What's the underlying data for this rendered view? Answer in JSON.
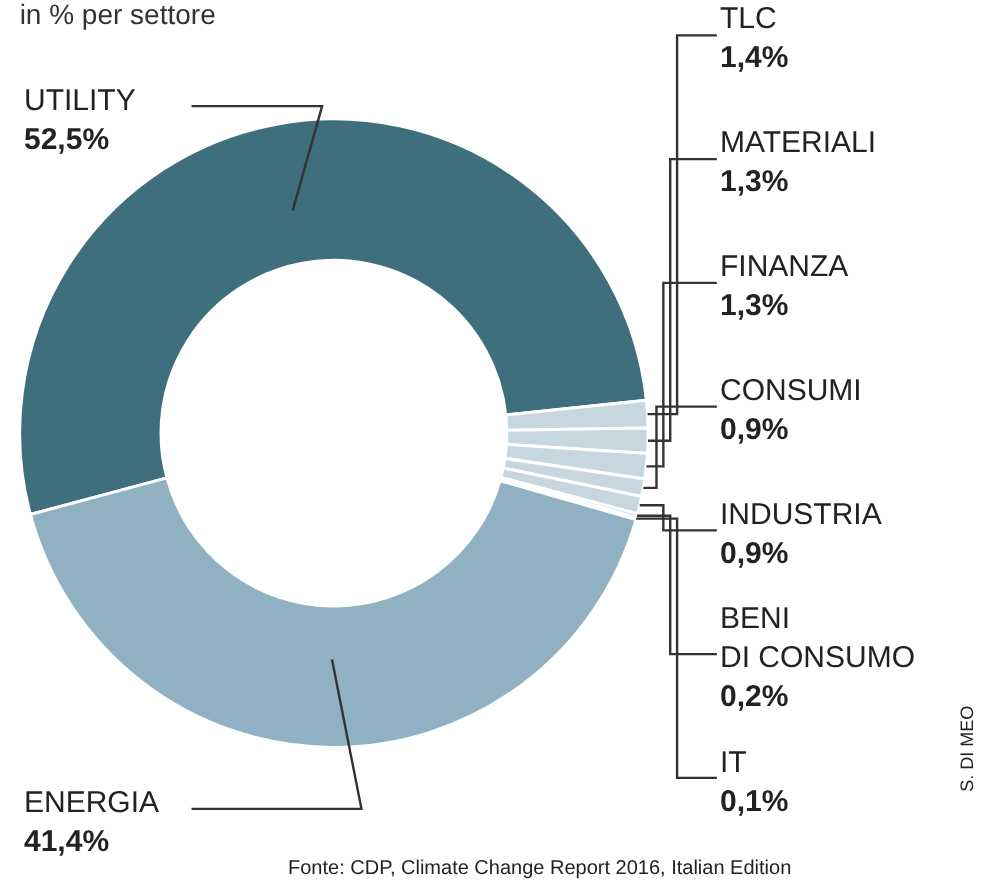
{
  "chart_data": {
    "type": "donut",
    "title": "in % per settore",
    "categories": [
      "UTILITY",
      "TLC",
      "MATERIALI",
      "FINANZA",
      "CONSUMI",
      "INDUSTRIA",
      "BENI DI CONSUMO",
      "IT",
      "ENERGIA"
    ],
    "values": [
      52.5,
      1.4,
      1.3,
      1.3,
      0.9,
      0.9,
      0.2,
      0.1,
      41.4
    ],
    "value_labels": [
      "52,5%",
      "1,4%",
      "1,3%",
      "1,3%",
      "0,9%",
      "0,9%",
      "0,2%",
      "0,1%",
      "41,4%"
    ],
    "colors": [
      "#3f6e7d",
      "#c7d7e0",
      "#c7d7e0",
      "#c7d7e0",
      "#c7d7e0",
      "#c7d7e0",
      "#c7d7e0",
      "#c7d7e0",
      "#8fb1c1"
    ],
    "legend": false,
    "annotations": [
      "Fonte: CDP, Climate Change Report 2016, Italian Edition",
      "S. DI MEO"
    ]
  }
}
